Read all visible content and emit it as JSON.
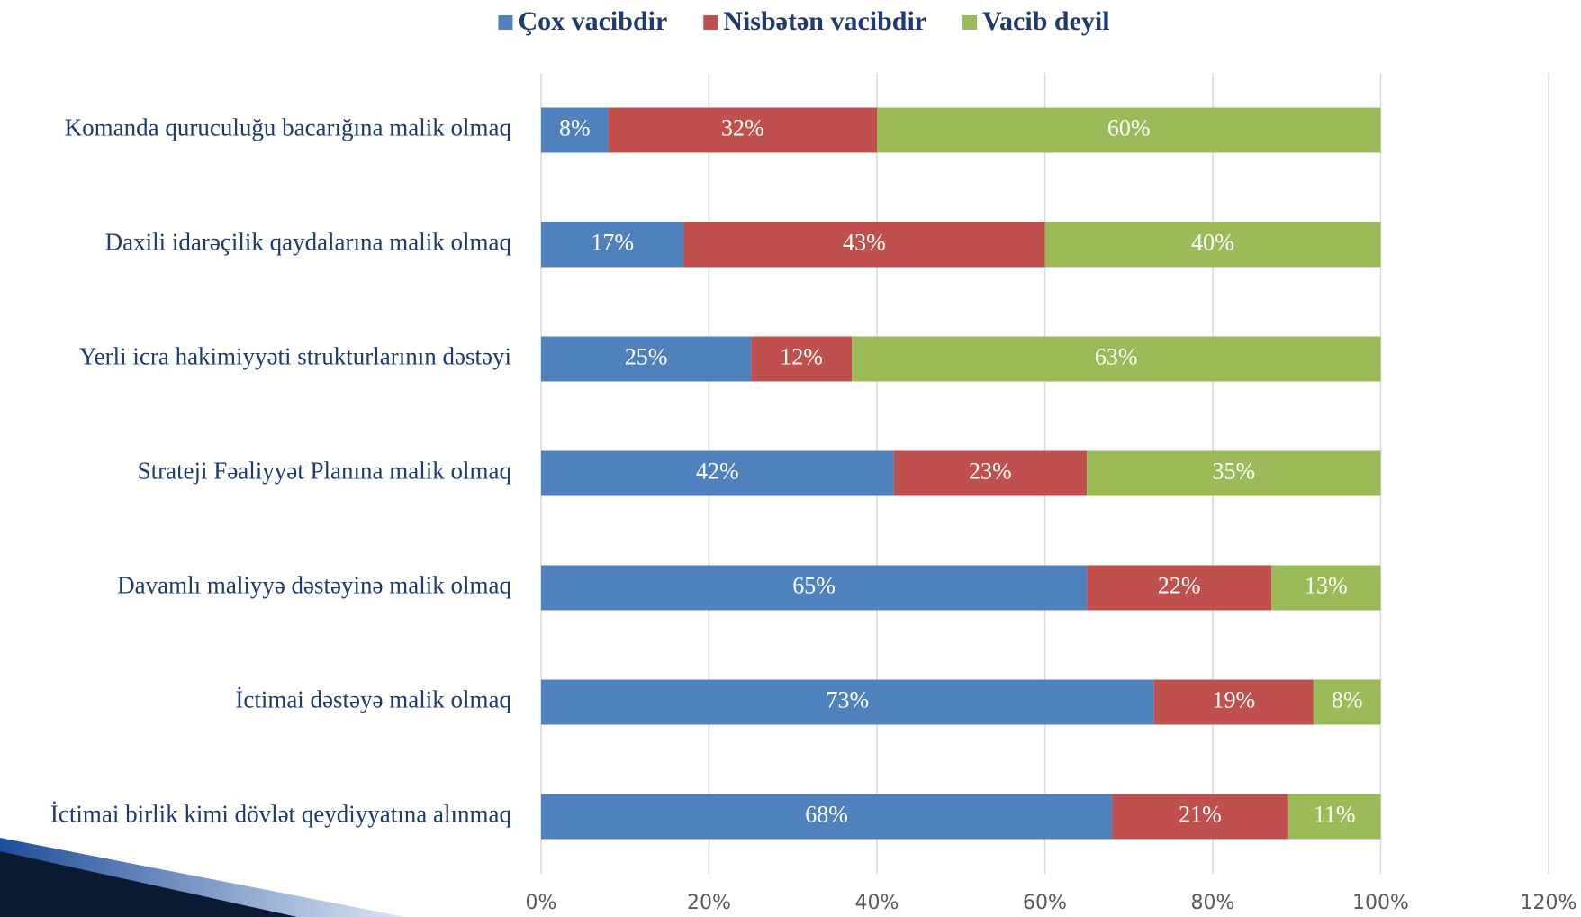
{
  "chart_data": {
    "type": "bar",
    "orientation": "horizontal",
    "stacked": true,
    "categories": [
      "Komanda quruculuğu bacarığına malik olmaq",
      "Daxili idarəçilik qaydalarına malik olmaq",
      "Yerli icra hakimiyyəti strukturlarının dəstəyi",
      "Strateji Fəaliyyət Planına malik olmaq",
      "Davamlı maliyyə dəstəyinə malik olmaq",
      "İctimai dəstəyə malik olmaq",
      "İctimai birlik kimi dövlət qeydiyyatına alınmaq"
    ],
    "series": [
      {
        "name": "Çox vacibdir",
        "color": "#4f81bd",
        "values": [
          8,
          17,
          25,
          42,
          65,
          73,
          68
        ],
        "value_labels": [
          "8%",
          "17%",
          "25%",
          "42%",
          "65%",
          "73%",
          "68%"
        ]
      },
      {
        "name": "Nisbətən vacibdir",
        "color": "#c0504d",
        "values": [
          32,
          43,
          12,
          23,
          22,
          19,
          21
        ],
        "value_labels": [
          "32%",
          "43%",
          "12%",
          "23%",
          "22%",
          "19%",
          "21%"
        ]
      },
      {
        "name": "Vacib deyil",
        "color": "#9bbb59",
        "values": [
          60,
          40,
          63,
          35,
          13,
          8,
          11
        ],
        "value_labels": [
          "60%",
          "40%",
          "63%",
          "35%",
          "13%",
          "8%",
          "11%"
        ]
      }
    ],
    "xlim": [
      0,
      120
    ],
    "xticks": [
      {
        "value": 0,
        "label": "0%"
      },
      {
        "value": 20,
        "label": "20%"
      },
      {
        "value": 40,
        "label": "40%"
      },
      {
        "value": 60,
        "label": "60%"
      },
      {
        "value": 80,
        "label": "80%"
      },
      {
        "value": 100,
        "label": "100%"
      },
      {
        "value": 120,
        "label": "120%"
      }
    ],
    "grid": true,
    "legend": "top"
  }
}
